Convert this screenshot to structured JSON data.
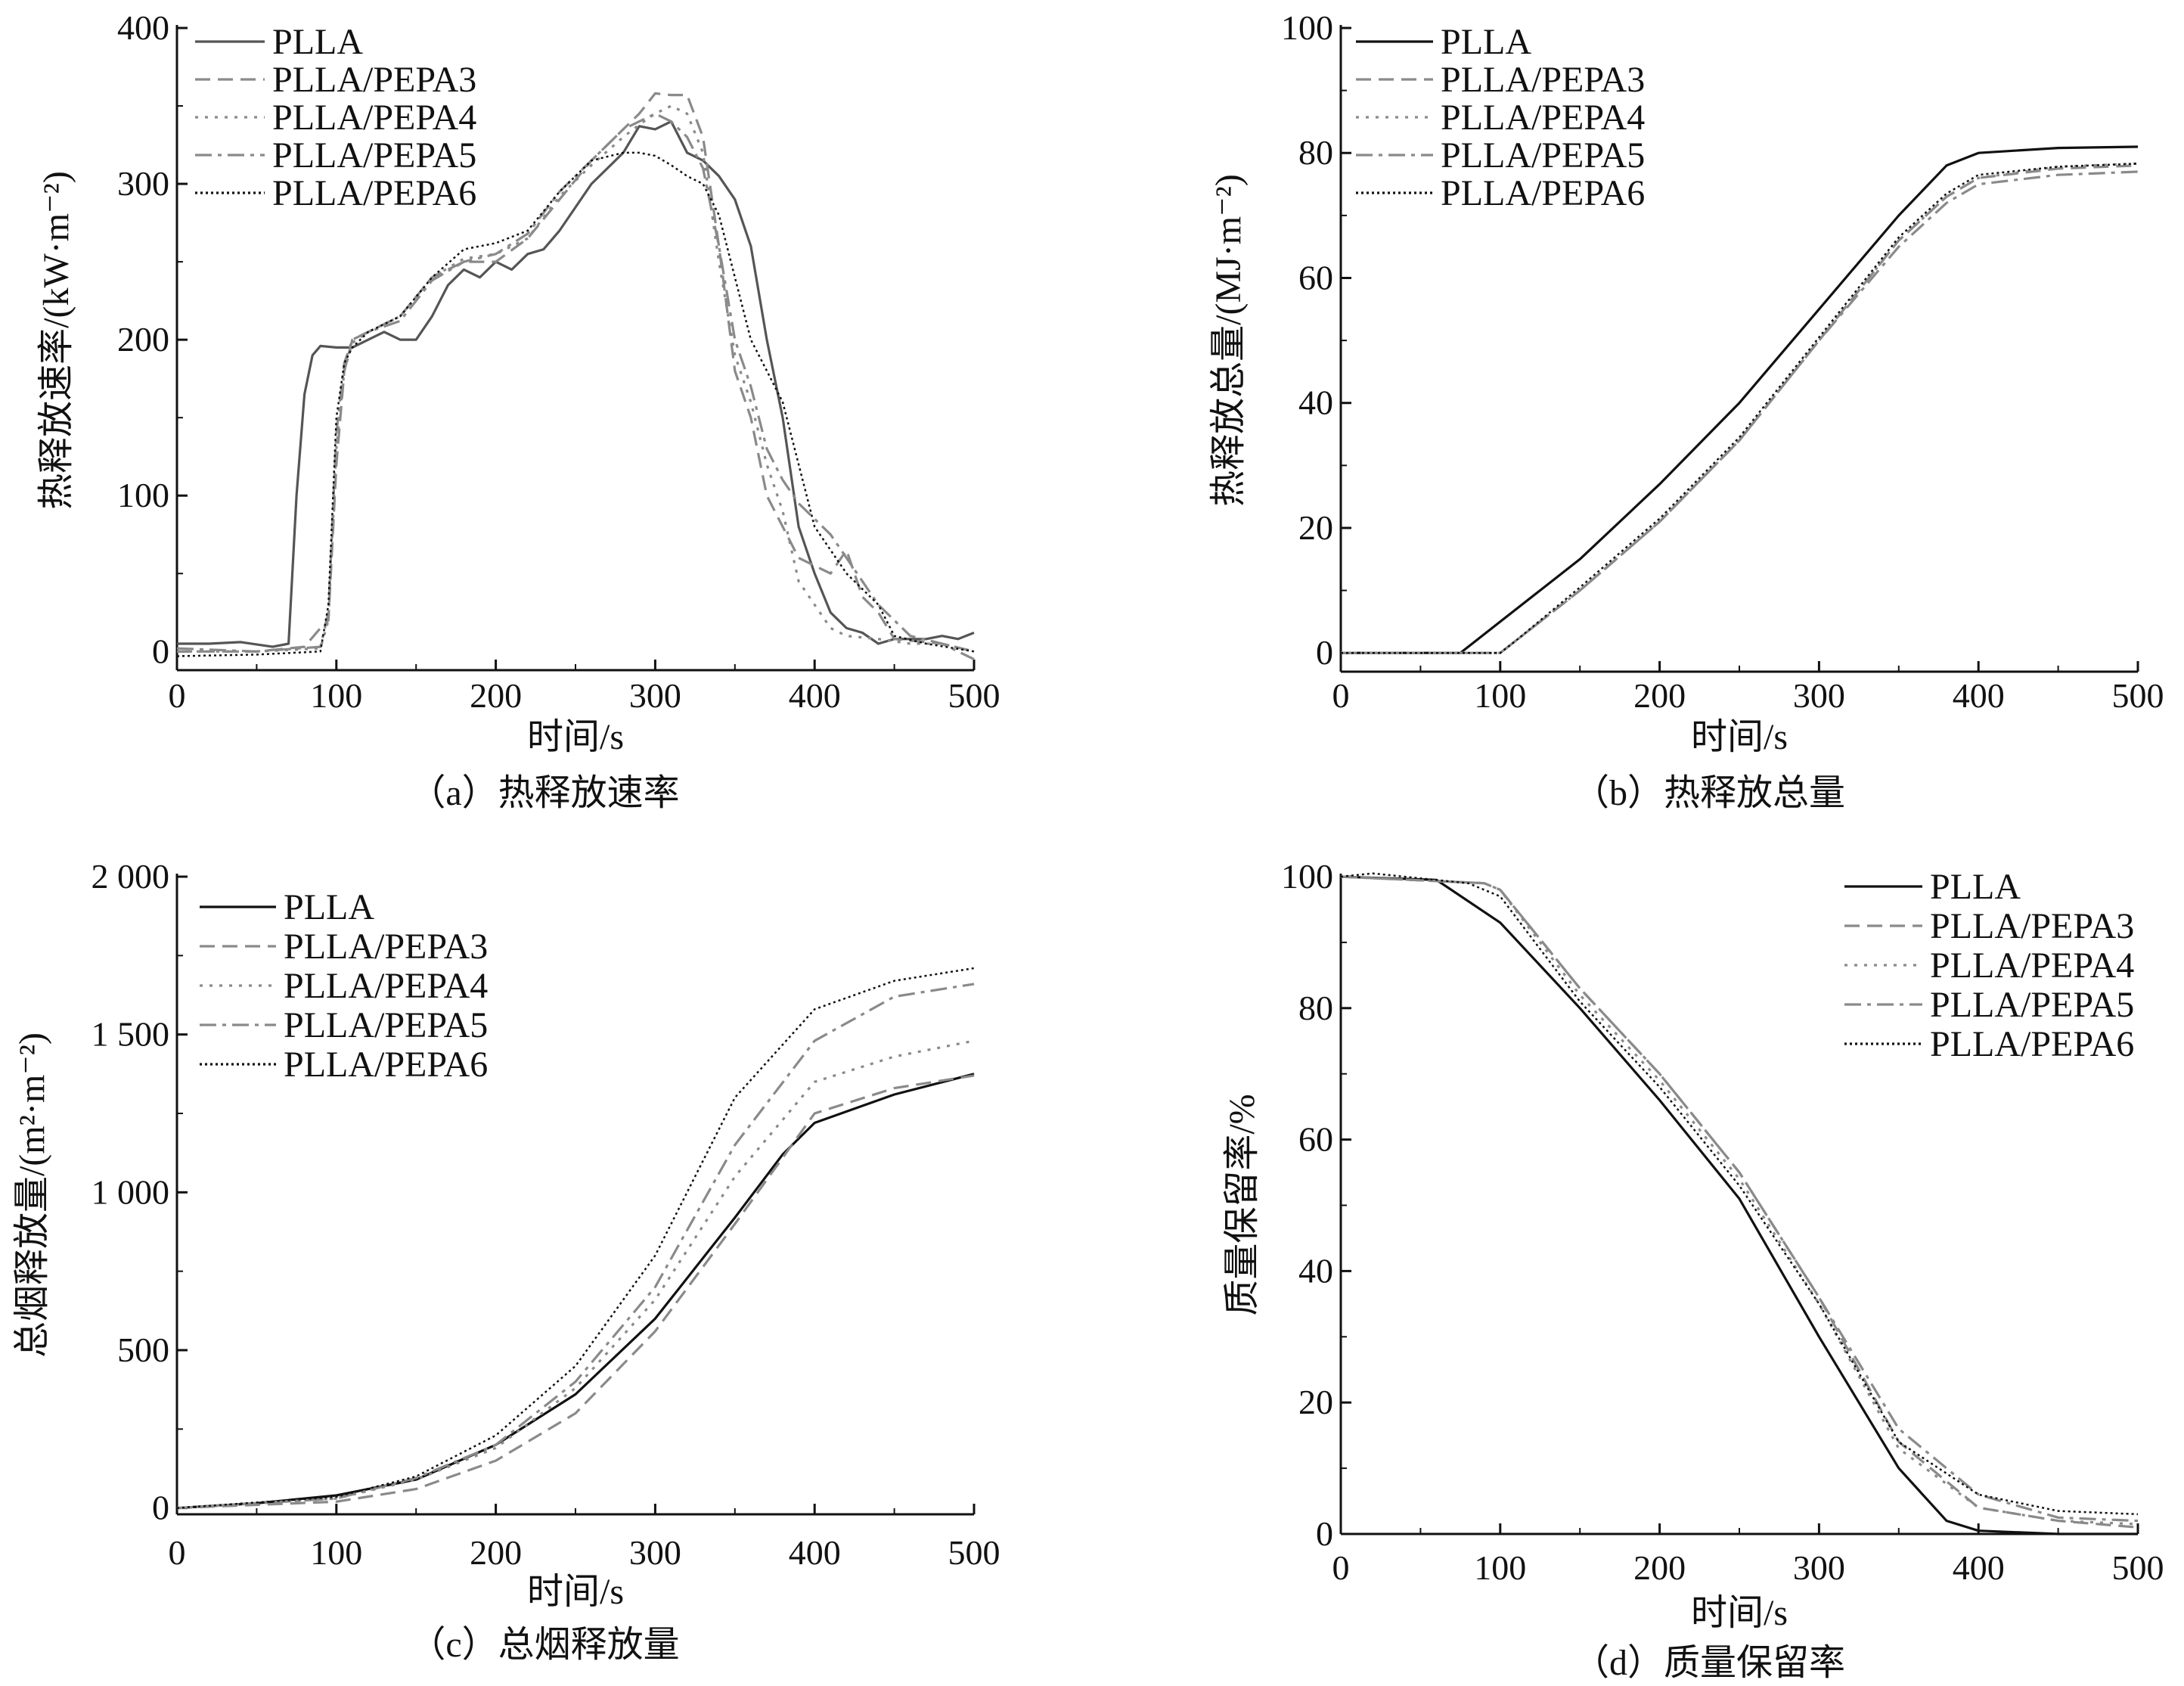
{
  "colors": {
    "black": "#111111",
    "gray": "#8a8a8a",
    "dark": "#555555"
  },
  "chart_data": [
    {
      "type": "line",
      "panel": "a",
      "caption": "（a）热释放速率",
      "xlabel": "时间/s",
      "ylabel": "热释放速率/(kW·m⁻²)",
      "xlim": [
        0,
        500
      ],
      "ylim": [
        -12,
        400
      ],
      "xticks": [
        0,
        100,
        200,
        300,
        400,
        500
      ],
      "yticks": [
        0,
        100,
        200,
        300,
        400
      ],
      "ytick_labels": [
        "0",
        "100",
        "200",
        "300",
        "400"
      ],
      "legend_position": "top-left",
      "series": [
        {
          "name": "PLLA",
          "style": "solid",
          "color": "dark",
          "x": [
            0,
            20,
            40,
            60,
            70,
            75,
            80,
            85,
            90,
            100,
            110,
            120,
            130,
            140,
            150,
            160,
            170,
            180,
            190,
            200,
            210,
            220,
            230,
            240,
            250,
            260,
            270,
            280,
            290,
            300,
            310,
            320,
            330,
            340,
            350,
            360,
            370,
            380,
            390,
            400,
            410,
            420,
            430,
            440,
            450,
            460,
            470,
            480,
            490,
            500
          ],
          "y": [
            5,
            5,
            6,
            3,
            5,
            100,
            165,
            190,
            196,
            195,
            195,
            200,
            205,
            200,
            200,
            215,
            235,
            245,
            240,
            250,
            245,
            255,
            258,
            270,
            285,
            300,
            310,
            320,
            337,
            335,
            340,
            320,
            315,
            305,
            290,
            260,
            200,
            150,
            80,
            50,
            25,
            15,
            12,
            5,
            8,
            8,
            8,
            10,
            8,
            12
          ]
        },
        {
          "name": "PLLA/PEPA3",
          "style": "dashed",
          "color": "gray",
          "x": [
            0,
            50,
            80,
            90,
            95,
            100,
            105,
            110,
            120,
            140,
            160,
            180,
            200,
            220,
            240,
            260,
            280,
            290,
            300,
            310,
            320,
            330,
            340,
            350,
            360,
            370,
            380,
            390,
            400,
            410,
            420,
            430,
            440,
            450,
            480,
            500
          ],
          "y": [
            0,
            0,
            3,
            15,
            20,
            120,
            180,
            200,
            205,
            215,
            240,
            250,
            250,
            265,
            290,
            315,
            335,
            345,
            358,
            357,
            357,
            330,
            260,
            180,
            150,
            100,
            80,
            60,
            55,
            50,
            65,
            35,
            25,
            8,
            5,
            0
          ]
        },
        {
          "name": "PLLA/PEPA4",
          "style": "dotted",
          "color": "gray",
          "x": [
            0,
            50,
            90,
            95,
            100,
            105,
            110,
            120,
            140,
            160,
            180,
            200,
            220,
            240,
            260,
            280,
            290,
            300,
            310,
            320,
            330,
            340,
            350,
            360,
            370,
            380,
            390,
            400,
            410,
            420,
            440,
            460,
            480,
            500
          ],
          "y": [
            0,
            0,
            2,
            20,
            130,
            180,
            198,
            205,
            215,
            240,
            252,
            255,
            265,
            292,
            312,
            330,
            338,
            345,
            350,
            345,
            320,
            250,
            190,
            160,
            120,
            90,
            45,
            30,
            15,
            10,
            8,
            5,
            5,
            0
          ]
        },
        {
          "name": "PLLA/PEPA5",
          "style": "dashdot",
          "color": "gray",
          "x": [
            0,
            50,
            90,
            95,
            100,
            105,
            110,
            120,
            140,
            160,
            180,
            200,
            220,
            240,
            260,
            280,
            290,
            300,
            310,
            320,
            330,
            340,
            350,
            360,
            370,
            380,
            390,
            400,
            410,
            420,
            440,
            460,
            480,
            500
          ],
          "y": [
            2,
            0,
            3,
            25,
            140,
            185,
            200,
            205,
            212,
            238,
            250,
            255,
            268,
            295,
            315,
            335,
            340,
            345,
            340,
            330,
            310,
            260,
            200,
            170,
            130,
            110,
            95,
            85,
            75,
            60,
            30,
            10,
            5,
            -5
          ]
        },
        {
          "name": "PLLA/PEPA6",
          "style": "finedot",
          "color": "black",
          "x": [
            0,
            50,
            90,
            95,
            100,
            105,
            110,
            120,
            140,
            160,
            180,
            200,
            220,
            240,
            260,
            280,
            290,
            300,
            310,
            320,
            330,
            340,
            350,
            360,
            370,
            380,
            390,
            400,
            410,
            420,
            440,
            450,
            470,
            500
          ],
          "y": [
            -3,
            -2,
            0,
            30,
            150,
            185,
            195,
            205,
            215,
            240,
            258,
            262,
            270,
            295,
            315,
            320,
            320,
            318,
            312,
            305,
            300,
            280,
            240,
            200,
            180,
            160,
            120,
            80,
            65,
            50,
            30,
            10,
            5,
            0
          ]
        }
      ]
    },
    {
      "type": "line",
      "panel": "b",
      "caption": "（b）热释放总量",
      "xlabel": "时间/s",
      "ylabel": "热释放总量/(MJ·m⁻²)",
      "xlim": [
        0,
        500
      ],
      "ylim": [
        -3,
        100
      ],
      "xticks": [
        0,
        100,
        200,
        300,
        400,
        500
      ],
      "yticks": [
        0,
        20,
        40,
        60,
        80,
        100
      ],
      "ytick_labels": [
        "0",
        "20",
        "40",
        "60",
        "80",
        "100"
      ],
      "legend_position": "top-left",
      "series": [
        {
          "name": "PLLA",
          "style": "solid",
          "color": "black",
          "x": [
            0,
            75,
            80,
            100,
            150,
            200,
            250,
            300,
            350,
            380,
            400,
            450,
            500
          ],
          "y": [
            0,
            0,
            1,
            5,
            15,
            27,
            40,
            55,
            70,
            78,
            80,
            80.8,
            81
          ]
        },
        {
          "name": "PLLA/PEPA3",
          "style": "dashed",
          "color": "gray",
          "x": [
            0,
            100,
            110,
            150,
            200,
            250,
            300,
            350,
            380,
            400,
            450,
            500
          ],
          "y": [
            0,
            0,
            2,
            10,
            21,
            34,
            50,
            66,
            73,
            76,
            77.5,
            78
          ]
        },
        {
          "name": "PLLA/PEPA4",
          "style": "dotted",
          "color": "gray",
          "x": [
            0,
            100,
            110,
            150,
            200,
            250,
            300,
            350,
            380,
            400,
            450,
            500
          ],
          "y": [
            0,
            0,
            2,
            10,
            21,
            34,
            50,
            66,
            73,
            76,
            77.8,
            78.3
          ]
        },
        {
          "name": "PLLA/PEPA5",
          "style": "dashdot",
          "color": "gray",
          "x": [
            0,
            100,
            110,
            150,
            200,
            250,
            300,
            350,
            380,
            400,
            450,
            500
          ],
          "y": [
            0,
            0,
            2,
            10,
            21,
            34,
            50,
            65,
            72,
            75,
            76.5,
            77
          ]
        },
        {
          "name": "PLLA/PEPA6",
          "style": "finedot",
          "color": "black",
          "x": [
            0,
            100,
            110,
            150,
            200,
            250,
            300,
            350,
            380,
            400,
            450,
            500
          ],
          "y": [
            0,
            0,
            2,
            10.5,
            21.5,
            34.5,
            50.5,
            66.5,
            73.5,
            76.5,
            77.8,
            78.3
          ]
        }
      ]
    },
    {
      "type": "line",
      "panel": "c",
      "caption": "（c）总烟释放量",
      "xlabel": "时间/s",
      "ylabel": "总烟释放量/(m²·m⁻²)",
      "xlim": [
        0,
        500
      ],
      "ylim": [
        -20,
        2000
      ],
      "xticks": [
        0,
        100,
        200,
        300,
        400,
        500
      ],
      "yticks": [
        0,
        500,
        1000,
        1500,
        2000
      ],
      "ytick_labels": [
        "0",
        "500",
        "1 000",
        "1 500",
        "2 000"
      ],
      "legend_position": "top-left",
      "series": [
        {
          "name": "PLLA",
          "style": "solid",
          "color": "black",
          "x": [
            0,
            50,
            100,
            150,
            200,
            250,
            300,
            350,
            380,
            400,
            450,
            500
          ],
          "y": [
            0,
            15,
            40,
            90,
            200,
            360,
            600,
            920,
            1120,
            1220,
            1310,
            1375
          ]
        },
        {
          "name": "PLLA/PEPA3",
          "style": "dashed",
          "color": "gray",
          "x": [
            0,
            100,
            150,
            200,
            250,
            300,
            350,
            400,
            450,
            500
          ],
          "y": [
            0,
            20,
            60,
            150,
            300,
            560,
            900,
            1250,
            1330,
            1370
          ]
        },
        {
          "name": "PLLA/PEPA4",
          "style": "dotted",
          "color": "gray",
          "x": [
            0,
            100,
            150,
            200,
            250,
            300,
            350,
            400,
            450,
            500
          ],
          "y": [
            0,
            30,
            90,
            190,
            380,
            660,
            1050,
            1350,
            1430,
            1480
          ]
        },
        {
          "name": "PLLA/PEPA5",
          "style": "dashdot",
          "color": "gray",
          "x": [
            0,
            100,
            150,
            200,
            250,
            300,
            350,
            400,
            450,
            500
          ],
          "y": [
            0,
            30,
            95,
            200,
            400,
            700,
            1150,
            1480,
            1620,
            1660
          ]
        },
        {
          "name": "PLLA/PEPA6",
          "style": "finedot",
          "color": "black",
          "x": [
            0,
            100,
            150,
            200,
            250,
            300,
            350,
            400,
            450,
            500
          ],
          "y": [
            0,
            35,
            100,
            230,
            450,
            800,
            1300,
            1580,
            1670,
            1710
          ]
        }
      ]
    },
    {
      "type": "line",
      "panel": "d",
      "caption": "（d）质量保留率",
      "xlabel": "时间/s",
      "ylabel": "质量保留率/%",
      "xlim": [
        0,
        500
      ],
      "ylim": [
        0,
        100
      ],
      "xticks": [
        0,
        100,
        200,
        300,
        400,
        500
      ],
      "yticks": [
        0,
        20,
        40,
        60,
        80,
        100
      ],
      "ytick_labels": [
        "0",
        "20",
        "40",
        "60",
        "80",
        "100"
      ],
      "legend_position": "top-right",
      "series": [
        {
          "name": "PLLA",
          "style": "solid",
          "color": "black",
          "x": [
            0,
            60,
            100,
            150,
            200,
            250,
            300,
            350,
            380,
            400,
            450,
            500
          ],
          "y": [
            100,
            99.5,
            93,
            80,
            66,
            51,
            30,
            10,
            2,
            0.5,
            0,
            0
          ]
        },
        {
          "name": "PLLA/PEPA3",
          "style": "dashed",
          "color": "gray",
          "x": [
            0,
            90,
            100,
            150,
            200,
            250,
            300,
            350,
            400,
            450,
            500
          ],
          "y": [
            100,
            99,
            98,
            83,
            70,
            55,
            36,
            14,
            4,
            2,
            1
          ]
        },
        {
          "name": "PLLA/PEPA4",
          "style": "dotted",
          "color": "gray",
          "x": [
            0,
            90,
            100,
            150,
            200,
            250,
            300,
            350,
            400,
            450,
            500
          ],
          "y": [
            100,
            99,
            98,
            82,
            69,
            54,
            35,
            13,
            4,
            2,
            1.5
          ]
        },
        {
          "name": "PLLA/PEPA5",
          "style": "dashdot",
          "color": "gray",
          "x": [
            0,
            90,
            100,
            150,
            200,
            250,
            300,
            350,
            400,
            450,
            500
          ],
          "y": [
            100,
            99,
            98,
            83,
            70,
            55,
            36,
            16,
            6,
            2.5,
            2
          ]
        },
        {
          "name": "PLLA/PEPA6",
          "style": "finedot",
          "color": "black",
          "x": [
            0,
            20,
            80,
            100,
            150,
            200,
            250,
            300,
            350,
            400,
            450,
            500
          ],
          "y": [
            100,
            100.5,
            99,
            97,
            81,
            68,
            53,
            35,
            14,
            6,
            3.5,
            3
          ]
        }
      ]
    }
  ]
}
